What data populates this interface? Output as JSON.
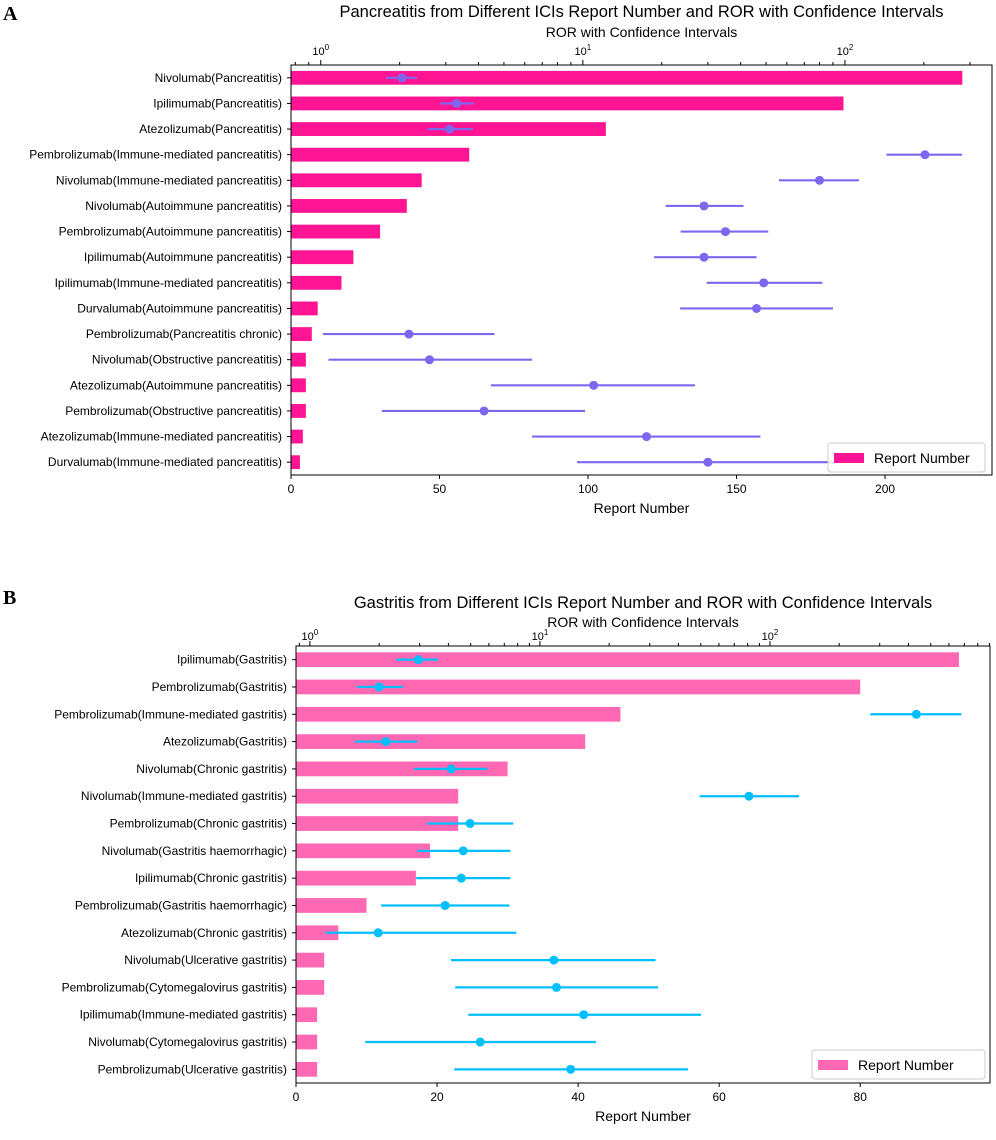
{
  "chart_data": [
    {
      "panel_label": "A",
      "type": "bar",
      "orientation": "horizontal",
      "title": "Pancreatitis from Different ICIs Report Number and ROR with Confidence Intervals",
      "xlabel": "Report Number",
      "x2label": "ROR with Confidence Intervals",
      "xlim": [
        0,
        236
      ],
      "xticks": [
        0,
        50,
        100,
        150,
        200
      ],
      "x2scale": "log",
      "x2lim": [
        0.77,
        364
      ],
      "x2ticks": [
        1,
        10,
        100
      ],
      "legend": {
        "label": "Report Number",
        "placement": "lower-right"
      },
      "colors": {
        "bar": "#ff1493",
        "ror": "#7b68ee"
      },
      "categories": [
        "Nivolumab(Pancreatitis)",
        "Ipilimumab(Pancreatitis)",
        "Atezolizumab(Pancreatitis)",
        "Pembrolizumab(Immune-mediated pancreatitis)",
        "Nivolumab(Immune-mediated pancreatitis)",
        "Nivolumab(Autoimmune pancreatitis)",
        "Pembrolizumab(Autoimmune pancreatitis)",
        "Ipilimumab(Autoimmune pancreatitis)",
        "Ipilimumab(Immune-mediated pancreatitis)",
        "Durvalumab(Autoimmune pancreatitis)",
        "Pembrolizumab(Pancreatitis chronic)",
        "Nivolumab(Obstructive pancreatitis)",
        "Atezolizumab(Autoimmune pancreatitis)",
        "Pembrolizumab(Obstructive pancreatitis)",
        "Atezolizumab(Immune-mediated pancreatitis)",
        "Durvalumab(Immune-mediated pancreatitis)"
      ],
      "report_number": [
        226,
        186,
        106,
        60,
        44,
        39,
        30,
        21,
        17,
        9,
        7,
        5,
        5,
        5,
        4,
        3
      ],
      "ror": [
        2.04,
        3.3,
        3.1,
        202,
        80,
        29,
        35,
        29,
        49,
        46,
        2.17,
        2.6,
        11,
        4.2,
        17.5,
        30
      ],
      "ror_lower": [
        1.77,
        2.85,
        2.56,
        144,
        56,
        20.7,
        23.6,
        18.7,
        29.7,
        23.5,
        1.02,
        1.07,
        4.46,
        1.71,
        6.4,
        9.5
      ],
      "ror_upper": [
        2.33,
        3.84,
        3.8,
        280,
        113,
        41,
        51,
        46,
        82,
        90,
        4.6,
        6.4,
        26.8,
        10.2,
        47.6,
        95
      ]
    },
    {
      "panel_label": "B",
      "type": "bar",
      "orientation": "horizontal",
      "title": "Gastritis from Different ICIs Report Number and ROR with Confidence Intervals",
      "xlabel": "Report Number",
      "x2label": "ROR with Confidence Intervals",
      "xlim": [
        0,
        98.4
      ],
      "xticks": [
        0,
        20,
        40,
        60,
        80
      ],
      "x2scale": "log",
      "x2lim": [
        0.87,
        905
      ],
      "x2ticks": [
        1,
        10,
        100
      ],
      "legend": {
        "label": "Report Number",
        "placement": "lower-right"
      },
      "colors": {
        "bar": "#ff69b4",
        "ror": "#00bfff"
      },
      "categories": [
        "Ipilimumab(Gastritis)",
        "Pembrolizumab(Gastritis)",
        "Pembrolizumab(Immune-mediated gastritis)",
        "Atezolizumab(Gastritis)",
        "Nivolumab(Chronic gastritis)",
        "Nivolumab(Immune-mediated gastritis)",
        "Pembrolizumab(Chronic gastritis)",
        "Nivolumab(Gastritis haemorrhagic)",
        "Ipilimumab(Chronic gastritis)",
        "Pembrolizumab(Gastritis haemorrhagic)",
        "Atezolizumab(Chronic gastritis)",
        "Nivolumab(Ulcerative gastritis)",
        "Pembrolizumab(Cytomegalovirus gastritis)",
        "Ipilimumab(Immune-mediated gastritis)",
        "Nivolumab(Cytomegalovirus gastritis)",
        "Pembrolizumab(Ulcerative gastritis)"
      ],
      "report_number": [
        94,
        80,
        46,
        41,
        30,
        23,
        23,
        19,
        17,
        10,
        6,
        4,
        4,
        3,
        3,
        3
      ],
      "ror": [
        2.96,
        2.0,
        433,
        2.14,
        4.11,
        81,
        4.97,
        4.64,
        4.55,
        3.87,
        1.98,
        11.5,
        11.8,
        15.5,
        5.5,
        13.6
      ],
      "ror_lower": [
        2.37,
        1.6,
        273,
        1.57,
        2.84,
        49.4,
        3.23,
        2.93,
        2.9,
        2.04,
        1.17,
        4.11,
        4.28,
        4.88,
        1.74,
        4.24
      ],
      "ror_upper": [
        3.61,
        2.54,
        680,
        2.93,
        5.9,
        134,
        7.66,
        7.44,
        7.44,
        7.37,
        7.9,
        31.8,
        32.6,
        50.2,
        17.5,
        44
      ]
    }
  ]
}
